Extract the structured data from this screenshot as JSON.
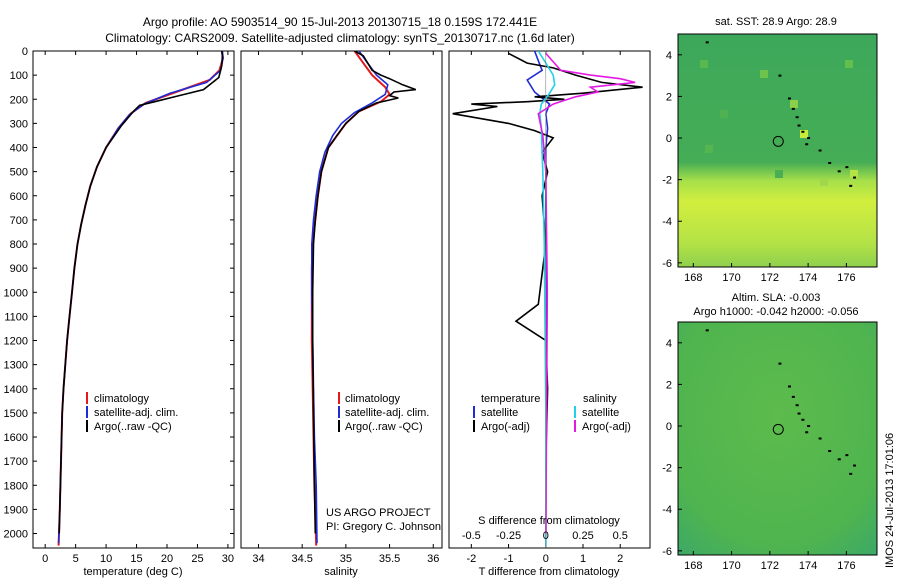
{
  "header": {
    "title_line1": "Argo profile: AO 5903514_90 15-Jul-2013 20130715_18 0.159S 172.441E",
    "title_line2": "Climatology: CARS2009. Satellite-adjusted climatology: synTS_20130717.nc (1.6d later)"
  },
  "credits": {
    "project": "US ARGO PROJECT",
    "pi": "PI: Gregory C. Johnson",
    "timestamp": "IMOS 24-Jul-2013 17:01:06"
  },
  "colors": {
    "climatology": "#e31a1c",
    "satellite": "#1f2bd6",
    "argo": "#000000",
    "sal_satellite": "#22d0ea",
    "sal_argo": "#e31ae3"
  },
  "chart_data": [
    {
      "type": "line",
      "id": "temperature",
      "xlabel": "temperature (deg C)",
      "ylabel": "",
      "xlim": [
        -2,
        31
      ],
      "ylim": [
        2060,
        0
      ],
      "xticks": [
        0,
        5,
        10,
        15,
        20,
        25,
        30
      ],
      "yticks": [
        0,
        100,
        200,
        300,
        400,
        500,
        600,
        700,
        800,
        900,
        1000,
        1100,
        1200,
        1300,
        1400,
        1500,
        1600,
        1700,
        1800,
        1900,
        2000
      ],
      "legend": [
        "climatology",
        "satellite-adj. clim.",
        "Argo(..raw -QC)"
      ],
      "series": [
        {
          "name": "climatology",
          "x": [
            29.0,
            29.2,
            28.6,
            27.0,
            21.5,
            16.5,
            14.0,
            12.0,
            10.0,
            8.5,
            7.4,
            6.6,
            5.9,
            5.3,
            4.8,
            4.4,
            4.0,
            3.6,
            3.3,
            3.0,
            2.8,
            2.6,
            2.4,
            2.2
          ],
          "y": [
            0,
            30,
            80,
            120,
            170,
            215,
            260,
            320,
            400,
            480,
            560,
            640,
            720,
            800,
            900,
            1000,
            1100,
            1200,
            1300,
            1400,
            1500,
            1700,
            1900,
            2050
          ]
        },
        {
          "name": "satellite-adj. clim.",
          "x": [
            29.1,
            29.2,
            28.8,
            26.5,
            20.5,
            16.2,
            13.8,
            12.0,
            10.0,
            8.5,
            7.4,
            6.6,
            5.9,
            5.3,
            4.8,
            4.4,
            4.0,
            3.6,
            3.3,
            3.0,
            2.8,
            2.6,
            2.4,
            2.2
          ],
          "y": [
            0,
            30,
            80,
            130,
            175,
            220,
            265,
            320,
            400,
            480,
            560,
            640,
            720,
            800,
            900,
            1000,
            1100,
            1200,
            1300,
            1400,
            1500,
            1700,
            1900,
            2040
          ]
        },
        {
          "name": "Argo(..raw -QC)",
          "x": [
            29.0,
            29.1,
            29.0,
            28.5,
            26.0,
            22.0,
            18.0,
            15.5,
            14.5,
            12.5,
            10.0,
            8.5,
            7.4,
            6.6,
            5.9,
            5.3,
            4.8,
            4.4,
            4.0,
            3.6,
            3.3,
            3.0,
            2.8,
            2.6,
            2.4,
            2.3
          ],
          "y": [
            0,
            20,
            60,
            110,
            160,
            185,
            210,
            225,
            250,
            310,
            400,
            480,
            560,
            640,
            720,
            800,
            900,
            1000,
            1100,
            1200,
            1300,
            1400,
            1500,
            1700,
            1900,
            2000
          ]
        }
      ]
    },
    {
      "type": "line",
      "id": "salinity",
      "xlabel": "salinity",
      "xlim": [
        33.8,
        36.1
      ],
      "ylim": [
        2060,
        0
      ],
      "xticks": [
        34,
        34.5,
        35,
        35.5,
        36
      ],
      "legend": [
        "climatology",
        "satellite-adj. clim.",
        "Argo(..raw -QC)"
      ],
      "series": [
        {
          "name": "climatology",
          "x": [
            35.1,
            35.2,
            35.3,
            35.45,
            35.5,
            35.4,
            35.15,
            35.0,
            34.9,
            34.8,
            34.72,
            34.68,
            34.65,
            34.62,
            34.61,
            34.61,
            34.61,
            34.62,
            34.63,
            34.64,
            34.65,
            34.66
          ],
          "y": [
            0,
            50,
            100,
            150,
            180,
            210,
            250,
            300,
            350,
            400,
            500,
            600,
            700,
            800,
            900,
            1000,
            1200,
            1400,
            1600,
            1800,
            1900,
            2050
          ]
        },
        {
          "name": "satellite-adj. clim.",
          "x": [
            35.15,
            35.25,
            35.35,
            35.48,
            35.45,
            35.3,
            35.1,
            34.95,
            34.85,
            34.76,
            34.7,
            34.66,
            34.63,
            34.61,
            34.61,
            34.61,
            34.62,
            34.63,
            34.64,
            34.66,
            34.67
          ],
          "y": [
            0,
            50,
            100,
            140,
            180,
            215,
            255,
            300,
            350,
            420,
            500,
            600,
            700,
            800,
            900,
            1000,
            1200,
            1400,
            1600,
            1800,
            2040
          ]
        },
        {
          "name": "Argo(..raw -QC)",
          "x": [
            35.1,
            35.2,
            35.25,
            35.3,
            35.4,
            35.5,
            35.65,
            35.8,
            35.55,
            35.5,
            35.6,
            35.35,
            35.15,
            35.0,
            34.9,
            34.8,
            34.72,
            34.68,
            34.65,
            34.63,
            34.62,
            34.62,
            34.63,
            34.64,
            34.65
          ],
          "y": [
            0,
            20,
            50,
            80,
            100,
            115,
            140,
            160,
            170,
            185,
            195,
            215,
            250,
            300,
            350,
            400,
            500,
            600,
            700,
            800,
            1000,
            1200,
            1500,
            1800,
            2000
          ]
        }
      ]
    },
    {
      "type": "line",
      "id": "difference",
      "xlabel": "T difference from climatology",
      "xlabel_top": "S difference from climatology",
      "xlim": [
        -2.6,
        2.8
      ],
      "ylim": [
        2060,
        0
      ],
      "xticks": [
        -2,
        -1,
        0,
        1,
        2
      ],
      "xticks_top": [
        -0.5,
        -0.25,
        0,
        0.25,
        0.5
      ],
      "legend_headers": [
        "temperature",
        "salinity"
      ],
      "legend": [
        "satellite",
        "Argo(-adj)",
        "satellite",
        "Argo(-adj)"
      ],
      "series": [
        {
          "name": "temperature satellite",
          "x": [
            -0.3,
            -0.2,
            -0.1,
            -0.5,
            -0.3,
            0.1,
            0.0,
            0.05,
            0.0,
            0.0,
            0.0,
            0.0,
            0.0
          ],
          "y": [
            0,
            40,
            80,
            120,
            170,
            220,
            260,
            320,
            400,
            600,
            1000,
            1500,
            2050
          ]
        },
        {
          "name": "temperature Argo(-adj)",
          "x": [
            -1.0,
            -0.5,
            0.2,
            0.8,
            1.5,
            2.6,
            1.0,
            -0.3,
            0.5,
            -0.5,
            -2.0,
            -1.3,
            -2.5,
            -1.0,
            -0.3,
            0.2,
            -0.1,
            0.05,
            -0.1,
            0.0,
            -0.2,
            -0.8,
            0.0,
            0.05,
            0.0,
            0.0
          ],
          "y": [
            10,
            50,
            70,
            100,
            130,
            150,
            175,
            190,
            200,
            210,
            220,
            230,
            260,
            300,
            330,
            360,
            420,
            500,
            600,
            800,
            1050,
            1120,
            1200,
            1400,
            1700,
            2000
          ]
        },
        {
          "name": "salinity satellite",
          "x": [
            -0.05,
            0.0,
            0.05,
            0.06,
            0.02,
            -0.03,
            -0.04,
            -0.03,
            -0.02,
            -0.01,
            0.0,
            0.0
          ],
          "y": [
            0,
            50,
            100,
            140,
            180,
            220,
            260,
            320,
            500,
            800,
            1500,
            2050
          ]
        },
        {
          "name": "salinity Argo(-adj)",
          "x": [
            0.0,
            0.1,
            0.3,
            0.5,
            0.6,
            0.3,
            0.35,
            0.2,
            0.05,
            -0.05,
            -0.02,
            0.0,
            0.01,
            0.0
          ],
          "y": [
            10,
            80,
            100,
            115,
            130,
            150,
            170,
            190,
            220,
            260,
            350,
            500,
            1000,
            2000
          ]
        }
      ]
    },
    {
      "type": "heatmap",
      "id": "sst-map",
      "title": "sat. SST: 28.9  Argo: 28.9",
      "xlim": [
        167.2,
        177.6
      ],
      "ylim": [
        -6.2,
        5.0
      ],
      "xticks": [
        168,
        170,
        172,
        174,
        176
      ],
      "yticks": [
        -6,
        -4,
        -2,
        0,
        2,
        4
      ],
      "marker": {
        "lon": 172.44,
        "lat": -0.16
      }
    },
    {
      "type": "heatmap",
      "id": "sla-map",
      "title": "Altim. SLA: -0.003",
      "subtitle": "Argo h1000: -0.042 h2000: -0.056",
      "xlim": [
        167.2,
        177.6
      ],
      "ylim": [
        -6.2,
        5.0
      ],
      "xticks": [
        168,
        170,
        172,
        174,
        176
      ],
      "yticks": [
        -6,
        -4,
        -2,
        0,
        2,
        4
      ],
      "marker": {
        "lon": 172.44,
        "lat": -0.16
      }
    }
  ]
}
